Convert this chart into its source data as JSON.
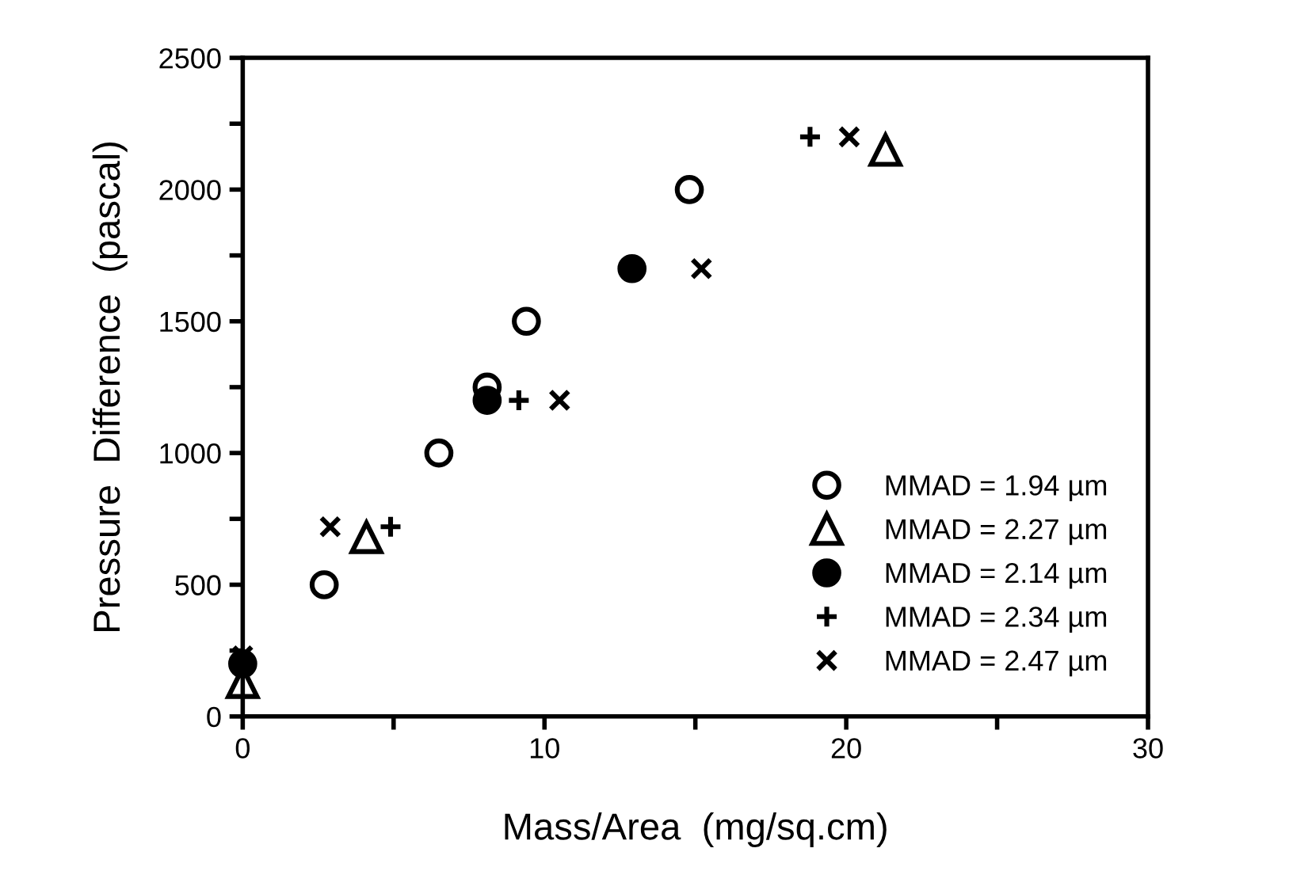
{
  "chart_data": {
    "type": "scatter",
    "xlabel": "Mass/Area  (mg/sq.cm)",
    "ylabel": "Pressure  Difference  (pascal)",
    "xlim": [
      0,
      30
    ],
    "ylim": [
      0,
      2500
    ],
    "xticks": [
      0,
      {
        "value": 5,
        "label": null
      },
      10,
      {
        "value": 15,
        "label": null
      },
      20,
      {
        "value": 25,
        "label": null
      },
      30
    ],
    "yticks": [
      0,
      {
        "value": 250,
        "label": null
      },
      500,
      {
        "value": 750,
        "label": null
      },
      1000,
      {
        "value": 1250,
        "label": null
      },
      1500,
      {
        "value": 1750,
        "label": null
      },
      2000,
      {
        "value": 2250,
        "label": null
      },
      2500
    ],
    "grid": false,
    "legend": "bottom right",
    "series": [
      {
        "name": "MMAD = 1.94 µm",
        "color": "#000000",
        "marker": "circle_open",
        "x": [
          2.7,
          6.5,
          8.1,
          9.4,
          14.8
        ],
        "values": [
          500,
          1000,
          1250,
          1500,
          2000
        ]
      },
      {
        "name": "MMAD = 2.27 µm",
        "color": "#000000",
        "marker": "triangle_open",
        "x": [
          0,
          4.1,
          21.3
        ],
        "values": [
          130,
          680,
          2150
        ]
      },
      {
        "name": "MMAD = 2.14 µm",
        "color": "#000000",
        "marker": "circle",
        "x": [
          0,
          8.1,
          12.9
        ],
        "values": [
          200,
          1200,
          1700
        ]
      },
      {
        "name": "MMAD = 2.34 µm",
        "color": "#000000",
        "marker": "plus",
        "x": [
          4.9,
          9.15,
          18.8
        ],
        "values": [
          720,
          1200,
          2200
        ]
      },
      {
        "name": "MMAD = 2.47 µm",
        "color": "#000000",
        "marker": "cross",
        "x": [
          0,
          2.9,
          10.5,
          15.2,
          20.1
        ],
        "values": [
          230,
          720,
          1200,
          1700,
          2200
        ]
      }
    ]
  }
}
